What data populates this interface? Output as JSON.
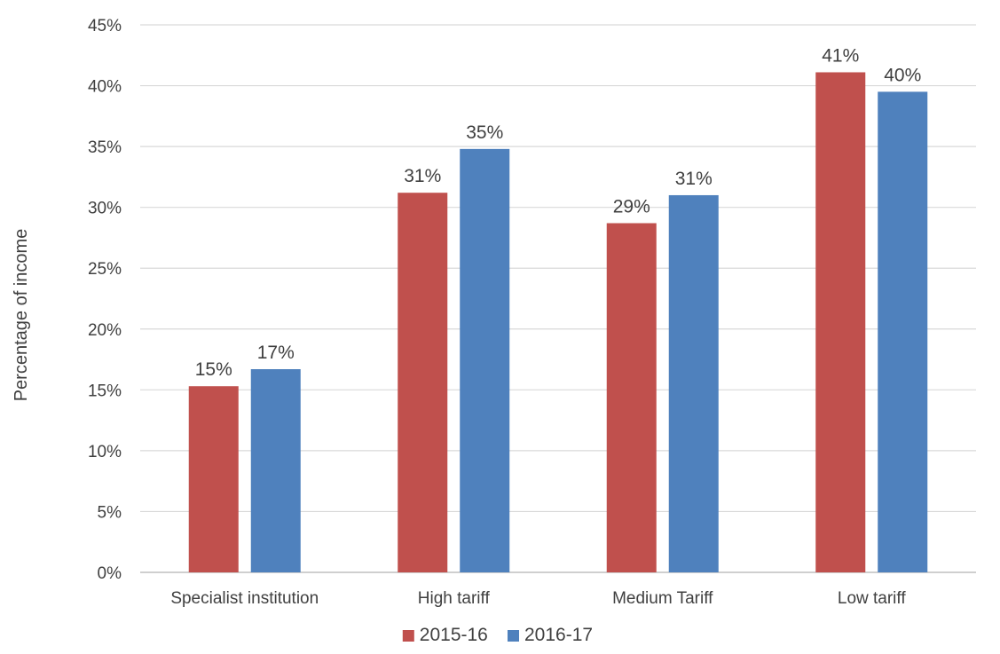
{
  "chart_data": {
    "type": "bar",
    "title": "",
    "xlabel": "",
    "ylabel": "Percentage of income",
    "categories": [
      "Specialist institution",
      "High tariff",
      "Medium Tariff",
      "Low tariff"
    ],
    "series": [
      {
        "name": "2015-16",
        "color": "#c0504d",
        "values": [
          15.3,
          31.2,
          28.7,
          41.1
        ],
        "labels": [
          "15%",
          "31%",
          "29%",
          "41%"
        ]
      },
      {
        "name": "2016-17",
        "color": "#4f81bd",
        "values": [
          16.7,
          34.8,
          31.0,
          39.5
        ],
        "labels": [
          "17%",
          "35%",
          "31%",
          "40%"
        ]
      }
    ],
    "ylim": [
      0,
      45
    ],
    "yticks": [
      0,
      5,
      10,
      15,
      20,
      25,
      30,
      35,
      40,
      45
    ],
    "ytick_labels": [
      "0%",
      "5%",
      "10%",
      "15%",
      "20%",
      "25%",
      "30%",
      "35%",
      "40%",
      "45%"
    ],
    "grid": true,
    "legend_position": "bottom"
  }
}
